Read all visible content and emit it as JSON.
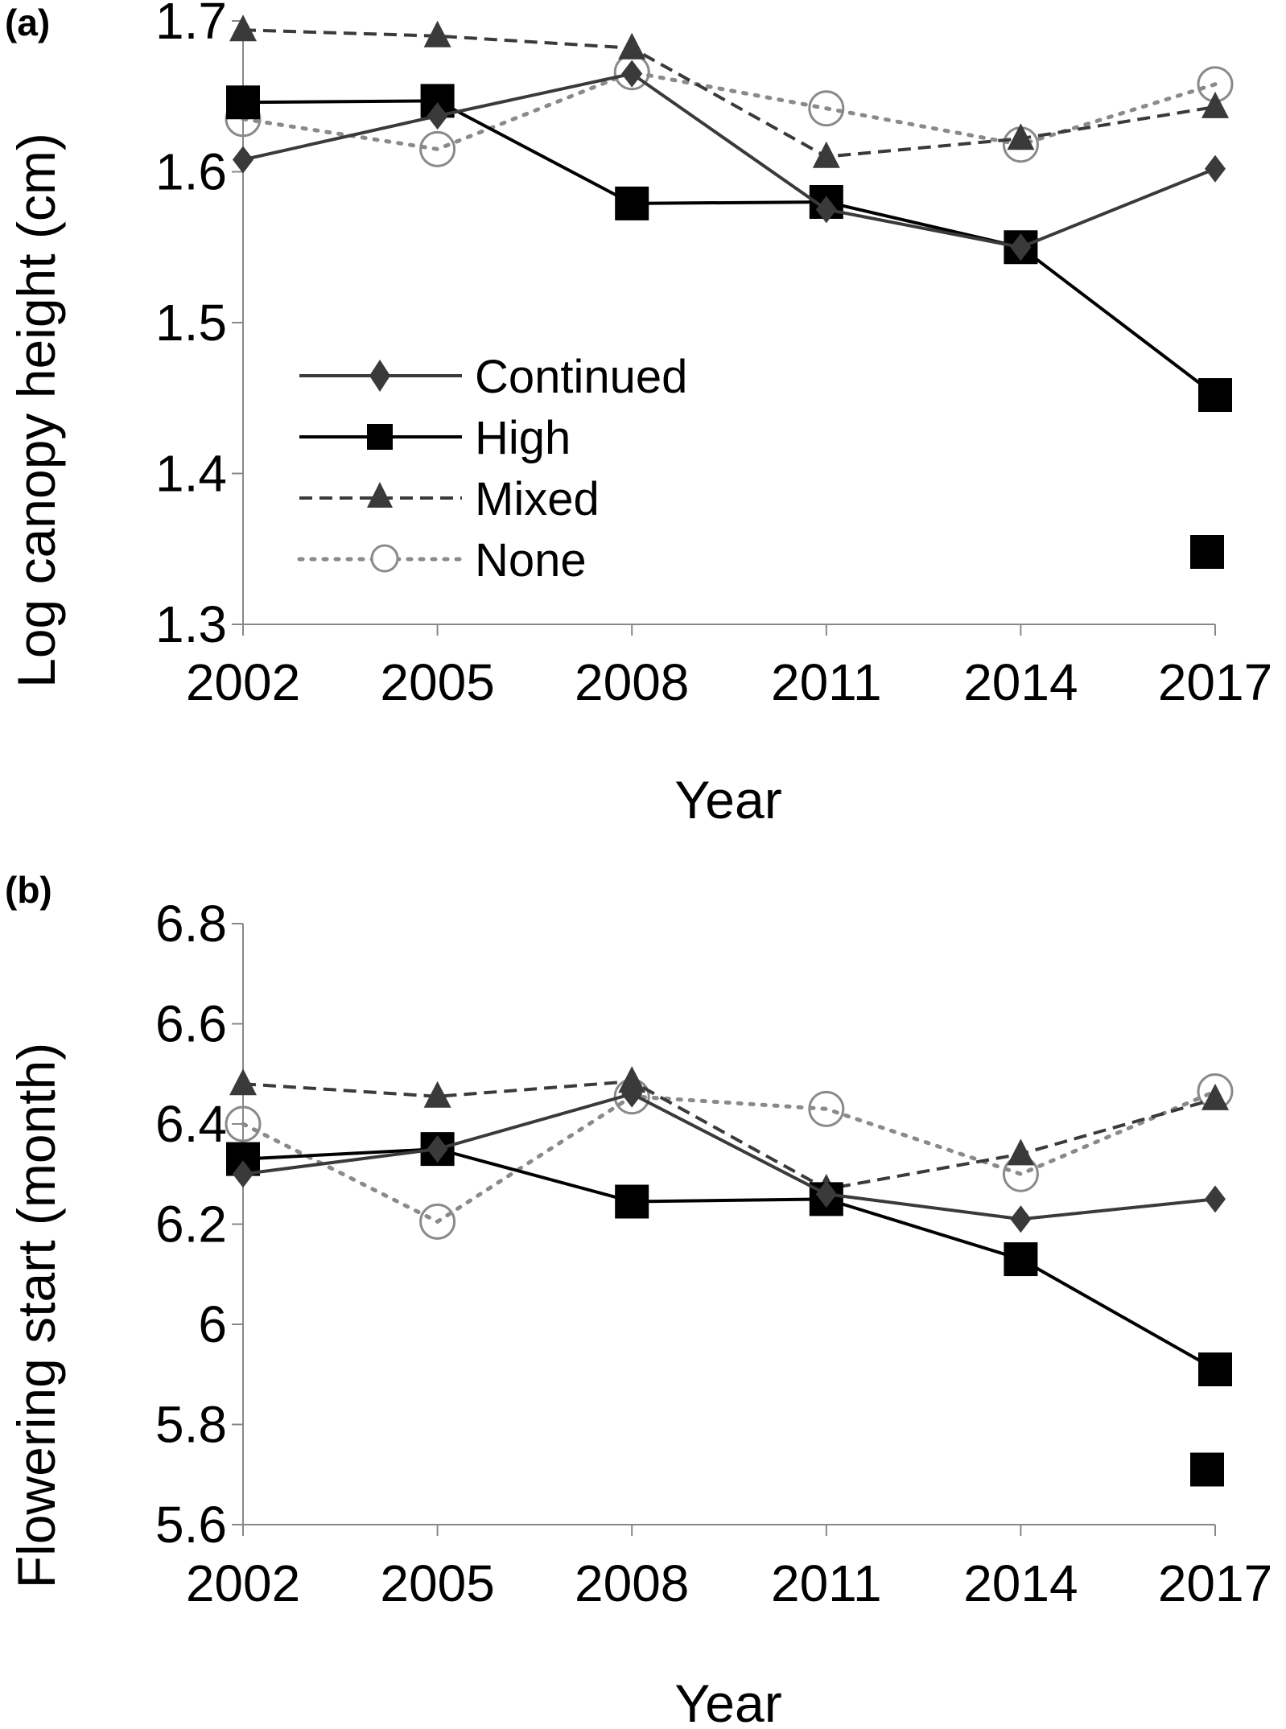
{
  "chart_data": [
    {
      "panel_label": "(a)",
      "type": "line",
      "xlabel": "Year",
      "ylabel": "Log canopy height (cm)",
      "ylim": [
        1.3,
        1.7
      ],
      "yticks": [
        "1.3",
        "1.4",
        "1.5",
        "1.6",
        "1.7"
      ],
      "categories": [
        "2002",
        "2005",
        "2008",
        "2011",
        "2014",
        "2017"
      ],
      "grid": false,
      "legend": "center-left",
      "series": [
        {
          "name": "Continued",
          "values": [
            1.608,
            1.637,
            1.665,
            1.575,
            1.55,
            1.602
          ],
          "color": "#3a3a3a",
          "marker": "diamond",
          "dash": "solid"
        },
        {
          "name": "High",
          "values": [
            1.646,
            1.647,
            1.579,
            1.58,
            1.55,
            1.452
          ],
          "color": "#000000",
          "marker": "square",
          "dash": "solid"
        },
        {
          "name": "Mixed",
          "values": [
            1.694,
            1.69,
            1.682,
            1.61,
            1.622,
            1.643
          ],
          "color": "#3a3a3a",
          "marker": "triangle",
          "dash": "dashed"
        },
        {
          "name": "None",
          "values": [
            1.635,
            1.615,
            1.666,
            1.642,
            1.618,
            1.658
          ],
          "color": "#8a8a8a",
          "marker": "circle",
          "dash": "dotted"
        }
      ],
      "extra_points": [
        {
          "series": "High",
          "x": "2017",
          "y": 1.348
        }
      ]
    },
    {
      "panel_label": "(b)",
      "type": "line",
      "xlabel": "Year",
      "ylabel": "Flowering start (month)",
      "ylim": [
        5.6,
        6.8
      ],
      "yticks": [
        "5.6",
        "5.8",
        "6",
        "6.2",
        "6.4",
        "6.6",
        "6.8"
      ],
      "categories": [
        "2002",
        "2005",
        "2008",
        "2011",
        "2014",
        "2017"
      ],
      "grid": false,
      "series": [
        {
          "name": "Continued",
          "values": [
            6.3,
            6.35,
            6.46,
            6.26,
            6.21,
            6.25
          ],
          "color": "#3a3a3a",
          "marker": "diamond",
          "dash": "solid"
        },
        {
          "name": "High",
          "values": [
            6.33,
            6.35,
            6.245,
            6.25,
            6.13,
            5.91
          ],
          "color": "#000000",
          "marker": "square",
          "dash": "solid"
        },
        {
          "name": "Mixed",
          "values": [
            6.48,
            6.455,
            6.485,
            6.27,
            6.34,
            6.45
          ],
          "color": "#3a3a3a",
          "marker": "triangle",
          "dash": "dashed"
        },
        {
          "name": "None",
          "values": [
            6.4,
            6.205,
            6.455,
            6.43,
            6.3,
            6.465
          ],
          "color": "#8a8a8a",
          "marker": "circle",
          "dash": "dotted"
        }
      ],
      "extra_points": [
        {
          "series": "High",
          "x": "2017",
          "y": 5.71
        }
      ]
    }
  ]
}
